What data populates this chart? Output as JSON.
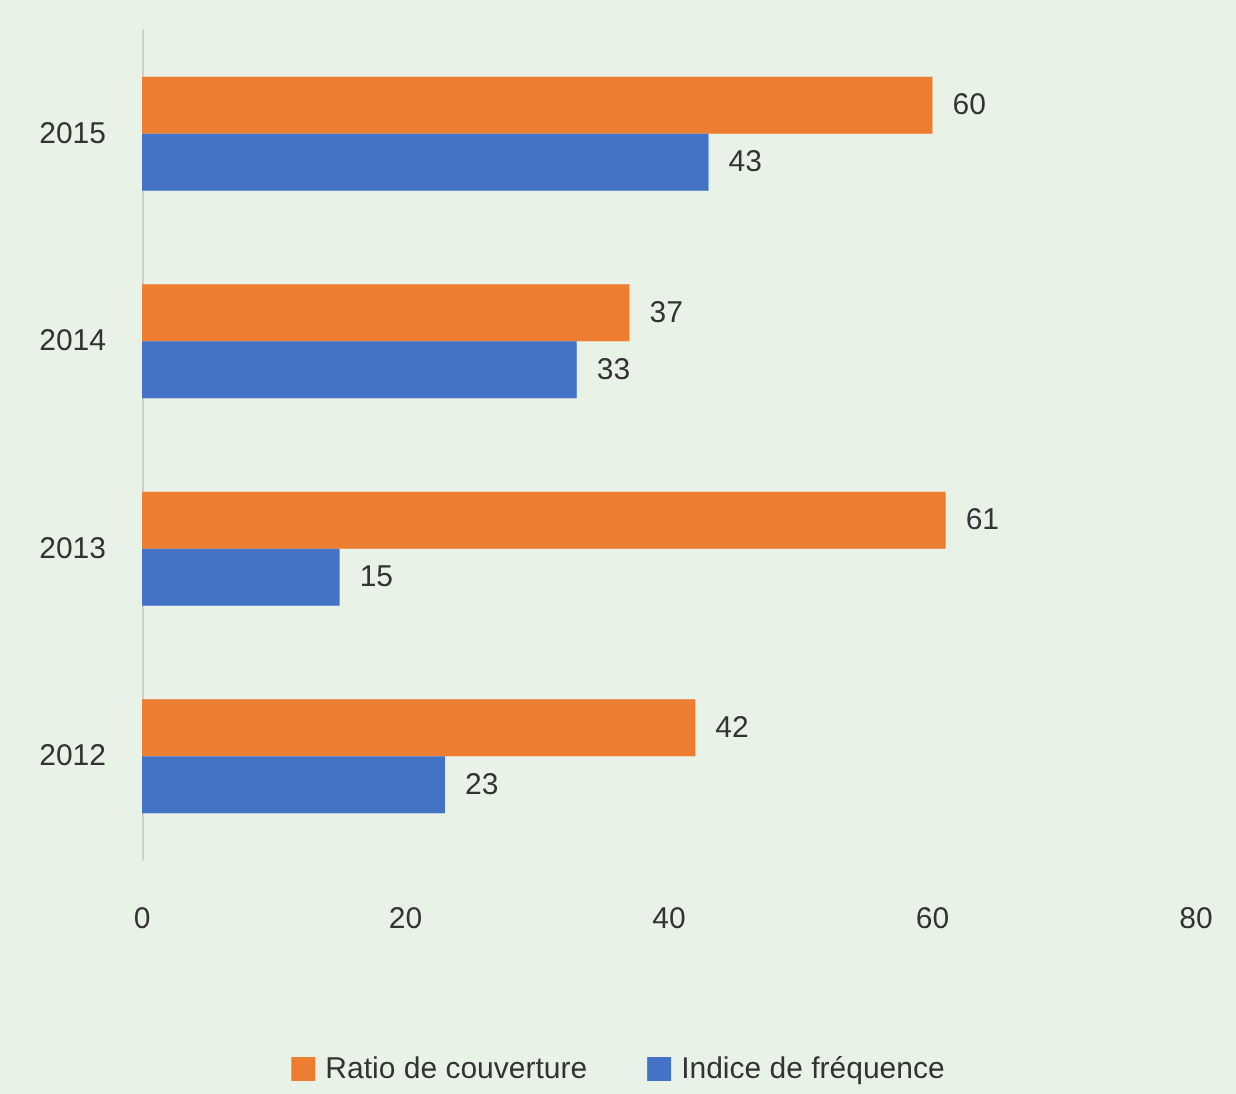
{
  "chart_data": {
    "type": "bar",
    "orientation": "horizontal",
    "categories": [
      "2015",
      "2014",
      "2013",
      "2012"
    ],
    "series": [
      {
        "name": "Ratio de couverture",
        "color": "#ed7d31",
        "values": [
          60,
          37,
          61,
          42
        ]
      },
      {
        "name": "Indice de fréquence",
        "color": "#4472c4",
        "values": [
          43,
          33,
          15,
          23
        ]
      }
    ],
    "xlim": [
      0,
      80
    ],
    "xticks": [
      0,
      20,
      40,
      60,
      80
    ],
    "grid": false,
    "legend": "bottom",
    "data_labels": true
  }
}
